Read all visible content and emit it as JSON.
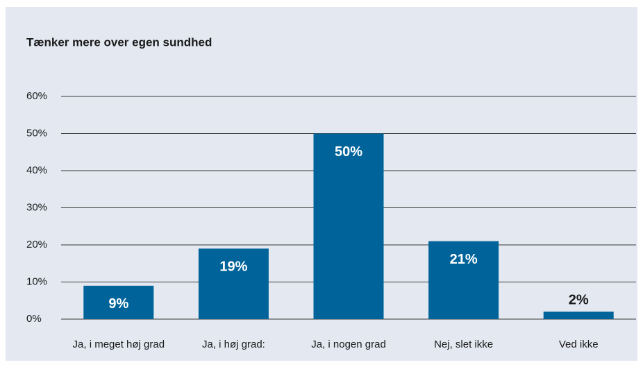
{
  "chart_data": {
    "type": "bar",
    "title": "Tænker mere over egen sundhed",
    "categories": [
      "Ja, i meget høj grad",
      "Ja, i høj grad:",
      "Ja, i nogen grad",
      "Nej, slet ikke",
      "Ved ikke"
    ],
    "values": [
      9,
      19,
      50,
      21,
      2
    ],
    "value_labels": [
      "9%",
      "19%",
      "50%",
      "21%",
      "2%"
    ],
    "color": "#00639a",
    "ylim": [
      0,
      60
    ],
    "yticks": [
      {
        "value": 0,
        "label": "0%"
      },
      {
        "value": 10,
        "label": "10%"
      },
      {
        "value": 20,
        "label": "20%"
      },
      {
        "value": 30,
        "label": "30%"
      },
      {
        "value": 40,
        "label": "40%"
      },
      {
        "value": 50,
        "label": "50%"
      },
      {
        "value": 60,
        "label": "60%"
      }
    ],
    "grid": true
  }
}
